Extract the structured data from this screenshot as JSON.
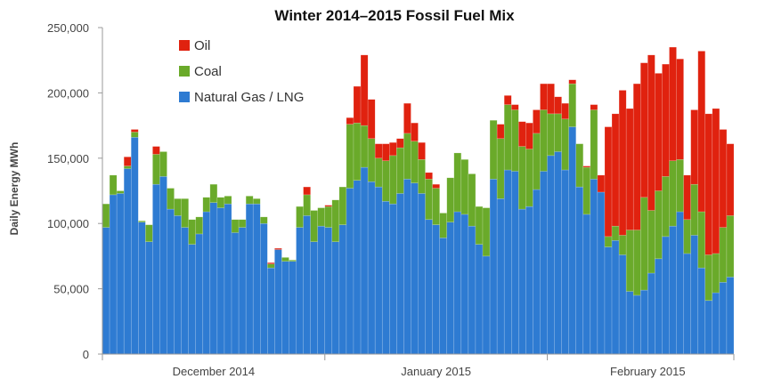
{
  "chart_data": {
    "type": "bar",
    "stacked": true,
    "title": "Winter 2014–2015 Fossil Fuel Mix",
    "ylabel": "Daily Energy MWh",
    "xlabel": "",
    "ylim": [
      0,
      250000
    ],
    "yticks": [
      0,
      50000,
      100000,
      150000,
      200000,
      250000
    ],
    "ytick_labels": [
      "0",
      "50,000",
      "100,000",
      "150,000",
      "200,000",
      "250,000"
    ],
    "x_labels": [
      {
        "label": "December 2014",
        "start_day": 0,
        "days": 31
      },
      {
        "label": "January 2015",
        "start_day": 31,
        "days": 31
      },
      {
        "label": "February 2015",
        "start_day": 62,
        "days": 28
      }
    ],
    "grid": false,
    "legend_position": "top-left",
    "series": [
      {
        "name": "Natural Gas / LNG",
        "color": "#2e7bd2",
        "values": [
          97000,
          122000,
          123000,
          142000,
          166000,
          101000,
          86000,
          130000,
          136000,
          111000,
          106000,
          97000,
          84000,
          92000,
          109000,
          116000,
          112000,
          115000,
          93000,
          97000,
          115000,
          115000,
          100000,
          66000,
          80000,
          71000,
          71000,
          97000,
          106000,
          86000,
          98000,
          97000,
          86000,
          99000,
          127000,
          133000,
          143000,
          132000,
          128000,
          117000,
          115000,
          123000,
          134000,
          131000,
          123000,
          103000,
          99000,
          89000,
          101000,
          109000,
          107000,
          98000,
          84000,
          75000,
          134000,
          119000,
          141000,
          140000,
          111000,
          113000,
          126000,
          140000,
          152000,
          155000,
          141000,
          174000,
          128000,
          107000,
          134000,
          124000,
          82000,
          87000,
          76000,
          48000,
          45000,
          49000,
          62000,
          73000,
          90000,
          98000,
          109000,
          77000,
          91000,
          66000,
          41000,
          47000,
          55000,
          59000
        ]
      },
      {
        "name": "Coal",
        "color": "#6aaa2a",
        "values": [
          18000,
          15000,
          2000,
          2000,
          4000,
          1000,
          13000,
          23000,
          19000,
          16000,
          13000,
          22000,
          19000,
          13000,
          11000,
          14000,
          8000,
          6000,
          10000,
          6000,
          6000,
          4000,
          5000,
          3000,
          0,
          3000,
          1000,
          16000,
          16000,
          24000,
          14000,
          16000,
          32000,
          29000,
          49000,
          44000,
          32000,
          33000,
          22000,
          31000,
          37000,
          35000,
          35000,
          32000,
          26000,
          31000,
          28000,
          19000,
          34000,
          45000,
          42000,
          40000,
          29000,
          37000,
          45000,
          46000,
          50000,
          47000,
          48000,
          44000,
          43000,
          47000,
          32000,
          29000,
          39000,
          33000,
          33000,
          36000,
          53000,
          0,
          8000,
          11000,
          15000,
          47000,
          50000,
          71000,
          48000,
          52000,
          46000,
          50000,
          40000,
          26000,
          39000,
          43000,
          35000,
          30000,
          42000,
          47000
        ]
      },
      {
        "name": "Oil",
        "color": "#e0220f",
        "values": [
          0,
          0,
          0,
          7000,
          2000,
          0,
          0,
          6000,
          0,
          0,
          0,
          0,
          0,
          0,
          0,
          0,
          0,
          0,
          0,
          0,
          0,
          0,
          0,
          1000,
          1000,
          0,
          0,
          0,
          6000,
          0,
          0,
          1000,
          0,
          0,
          5000,
          28000,
          54000,
          30000,
          11000,
          13000,
          10000,
          7000,
          23000,
          14000,
          13000,
          5000,
          3000,
          0,
          0,
          0,
          0,
          0,
          0,
          0,
          0,
          11000,
          7000,
          4000,
          19000,
          20000,
          18000,
          20000,
          23000,
          13000,
          12000,
          3000,
          0,
          1000,
          4000,
          13000,
          84000,
          86000,
          111000,
          93000,
          112000,
          103000,
          119000,
          90000,
          86000,
          87000,
          77000,
          34000,
          57000,
          123000,
          108000,
          111000,
          75000,
          55000
        ]
      }
    ]
  }
}
